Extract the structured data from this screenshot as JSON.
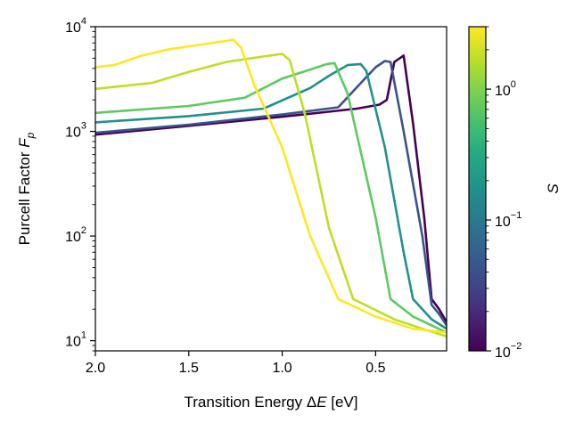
{
  "chart_data": {
    "type": "line",
    "title": "",
    "xlabel": "Transition Energy ΔE [eV]",
    "xlabel_parts": {
      "main": "Transition Energy Δ",
      "var": "E",
      "unit": " [eV]"
    },
    "ylabel": "Purcell Factor F_p",
    "ylabel_parts": {
      "main": "Purcell Factor ",
      "var": "F",
      "sub": "p"
    },
    "x_reversed": true,
    "xlim": [
      2.0,
      0.12
    ],
    "ylim": [
      8,
      10000
    ],
    "y_scale": "log",
    "x_ticks": [
      2.0,
      1.5,
      1.0,
      0.5
    ],
    "x_tick_labels": [
      "2.0",
      "1.5",
      "1.0",
      "0.5"
    ],
    "y_ticks": [
      10,
      100,
      1000,
      10000
    ],
    "y_tick_labels": [
      {
        "base": "10",
        "exp": "1"
      },
      {
        "base": "10",
        "exp": "2"
      },
      {
        "base": "10",
        "exp": "3"
      },
      {
        "base": "10",
        "exp": "4"
      }
    ],
    "colorbar": {
      "label": "S",
      "scale": "log",
      "range": [
        0.01,
        3.0
      ],
      "colormap": "viridis",
      "ticks": [
        0.01,
        0.1,
        1.0
      ],
      "tick_labels": [
        {
          "base": "10",
          "exp": "−2"
        },
        {
          "base": "10",
          "exp": "−1"
        },
        {
          "base": "10",
          "exp": "0"
        }
      ]
    },
    "series": [
      {
        "name": "S=0.01",
        "color": "#440154",
        "x": [
          2.0,
          1.5,
          1.0,
          0.6,
          0.48,
          0.44,
          0.4,
          0.35,
          0.3,
          0.24,
          0.2,
          0.16,
          0.12
        ],
        "y": [
          930,
          1130,
          1380,
          1650,
          1800,
          2000,
          4600,
          5300,
          1200,
          150,
          25,
          20,
          15
        ]
      },
      {
        "name": "S=0.05",
        "color": "#3b528b",
        "x": [
          2.0,
          1.5,
          1.0,
          0.7,
          0.55,
          0.5,
          0.45,
          0.42,
          0.35,
          0.25,
          0.2,
          0.16,
          0.12
        ],
        "y": [
          970,
          1160,
          1450,
          1700,
          3300,
          4100,
          4700,
          4600,
          1000,
          100,
          22,
          18,
          14
        ]
      },
      {
        "name": "S=0.15",
        "color": "#21918c",
        "x": [
          2.0,
          1.5,
          1.1,
          0.85,
          0.75,
          0.65,
          0.58,
          0.55,
          0.45,
          0.35,
          0.3,
          0.2,
          0.12
        ],
        "y": [
          1220,
          1400,
          1650,
          2600,
          3400,
          4300,
          4400,
          3800,
          700,
          70,
          25,
          16,
          13
        ]
      },
      {
        "name": "S=0.4",
        "color": "#5ec962",
        "x": [
          2.0,
          1.5,
          1.2,
          1.0,
          0.85,
          0.76,
          0.72,
          0.65,
          0.5,
          0.42,
          0.3,
          0.2,
          0.12
        ],
        "y": [
          1500,
          1750,
          2100,
          3200,
          3900,
          4400,
          4500,
          2300,
          150,
          25,
          17,
          14,
          12
        ]
      },
      {
        "name": "S=1.0",
        "color": "#bddf26",
        "x": [
          2.0,
          1.7,
          1.5,
          1.3,
          1.1,
          1.0,
          0.96,
          0.88,
          0.75,
          0.62,
          0.4,
          0.25,
          0.12
        ],
        "y": [
          2550,
          2900,
          3700,
          4600,
          5200,
          5500,
          4800,
          1500,
          120,
          25,
          16,
          13,
          11
        ]
      },
      {
        "name": "S=3.0",
        "color": "#fde725",
        "x": [
          2.0,
          1.9,
          1.75,
          1.6,
          1.35,
          1.26,
          1.22,
          1.15,
          1.0,
          0.85,
          0.7,
          0.5,
          0.3,
          0.12
        ],
        "y": [
          4100,
          4300,
          5300,
          6100,
          7100,
          7500,
          6300,
          2800,
          700,
          100,
          25,
          17,
          13,
          12
        ]
      }
    ]
  }
}
